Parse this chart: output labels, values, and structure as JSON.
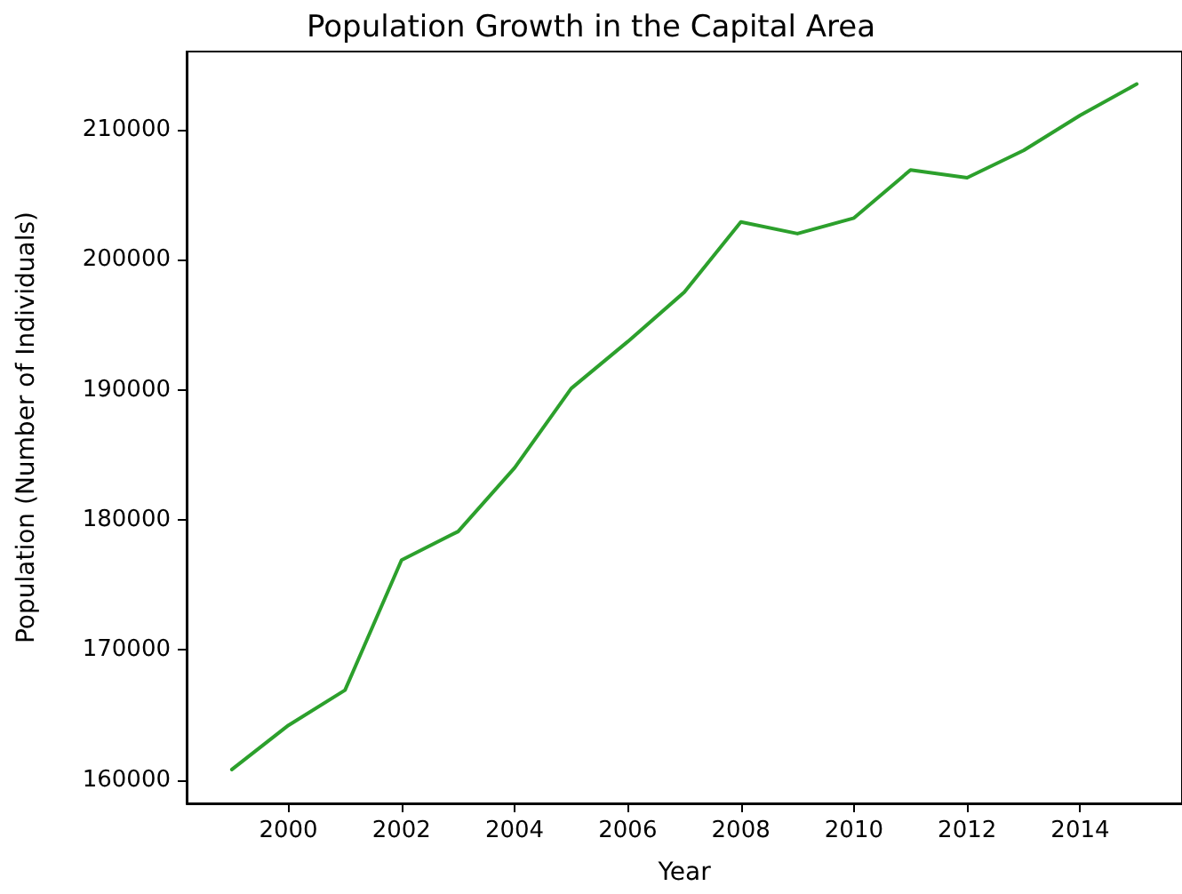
{
  "chart_data": {
    "type": "line",
    "title": "Population Growth in the Capital Area",
    "xlabel": "Year",
    "ylabel": "Population (Number of Individuals)",
    "x": [
      1999,
      2000,
      2001,
      2002,
      2003,
      2004,
      2005,
      2006,
      2007,
      2008,
      2009,
      2010,
      2011,
      2012,
      2013,
      2014,
      2015
    ],
    "series": [
      {
        "color": "#2ca02c",
        "values": [
          160800,
          164200,
          166900,
          176900,
          179100,
          184000,
          190100,
          193700,
          197500,
          202900,
          202000,
          203200,
          206900,
          206300,
          208400,
          211100,
          213500
        ]
      }
    ],
    "xlim": [
      1998.2,
      2015.8
    ],
    "ylim": [
      158200,
      216000
    ],
    "xticks": [
      2000,
      2002,
      2004,
      2006,
      2008,
      2010,
      2012,
      2014
    ],
    "yticks": [
      160000,
      170000,
      180000,
      190000,
      200000,
      210000
    ],
    "grid": false,
    "marker": "none",
    "line_style": "solid"
  }
}
